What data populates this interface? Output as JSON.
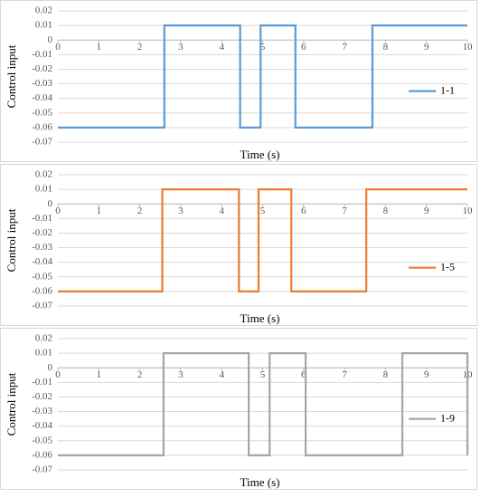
{
  "chart_data": [
    {
      "type": "line",
      "x_label": "Time (s)",
      "y_label": "Control input",
      "x": [
        0,
        2.6,
        2.6,
        4.45,
        4.45,
        4.95,
        4.95,
        5.8,
        5.8,
        7.68,
        7.68,
        10
      ],
      "series": [
        {
          "name": "1-1",
          "color": "#5b9bd5",
          "values": [
            -0.06,
            -0.06,
            0.01,
            0.01,
            -0.06,
            -0.06,
            0.01,
            0.01,
            -0.06,
            -0.06,
            0.01,
            0.01
          ]
        }
      ],
      "xlim": [
        0,
        10
      ],
      "ylim": [
        -0.07,
        0.02
      ],
      "xticks": [
        0,
        1,
        2,
        3,
        4,
        5,
        6,
        7,
        8,
        9,
        10
      ],
      "yticks": [
        0.02,
        0.01,
        0,
        -0.01,
        -0.02,
        -0.03,
        -0.04,
        -0.05,
        -0.06,
        -0.07
      ],
      "grid": true,
      "legend": "right"
    },
    {
      "type": "line",
      "x_label": "Time (s)",
      "y_label": "Control input",
      "x": [
        0,
        2.55,
        2.55,
        4.42,
        4.42,
        4.9,
        4.9,
        5.7,
        5.7,
        7.53,
        7.53,
        10
      ],
      "series": [
        {
          "name": "1-5",
          "color": "#ed7d31",
          "values": [
            -0.06,
            -0.06,
            0.01,
            0.01,
            -0.06,
            -0.06,
            0.01,
            0.01,
            -0.06,
            -0.06,
            0.01,
            0.01
          ]
        }
      ],
      "xlim": [
        0,
        10
      ],
      "ylim": [
        -0.07,
        0.02
      ],
      "xticks": [
        0,
        1,
        2,
        3,
        4,
        5,
        6,
        7,
        8,
        9,
        10
      ],
      "yticks": [
        0.02,
        0.01,
        0,
        -0.01,
        -0.02,
        -0.03,
        -0.04,
        -0.05,
        -0.06,
        -0.07
      ],
      "grid": true,
      "legend": "right"
    },
    {
      "type": "line",
      "x_label": "Time (s)",
      "y_label": "Control input",
      "x": [
        0,
        2.58,
        2.58,
        4.66,
        4.66,
        5.17,
        5.17,
        6.05,
        6.05,
        8.41,
        8.41,
        10,
        10
      ],
      "series": [
        {
          "name": "1-9",
          "color": "#a5a5a5",
          "values": [
            -0.06,
            -0.06,
            0.01,
            0.01,
            -0.06,
            -0.06,
            0.01,
            0.01,
            -0.06,
            -0.06,
            0.01,
            0.01,
            -0.06
          ]
        }
      ],
      "xlim": [
        0,
        10
      ],
      "ylim": [
        -0.07,
        0.02
      ],
      "xticks": [
        0,
        1,
        2,
        3,
        4,
        5,
        6,
        7,
        8,
        9,
        10
      ],
      "yticks": [
        0.02,
        0.01,
        0,
        -0.01,
        -0.02,
        -0.03,
        -0.04,
        -0.05,
        -0.06,
        -0.07
      ],
      "grid": true,
      "legend": "right"
    }
  ]
}
